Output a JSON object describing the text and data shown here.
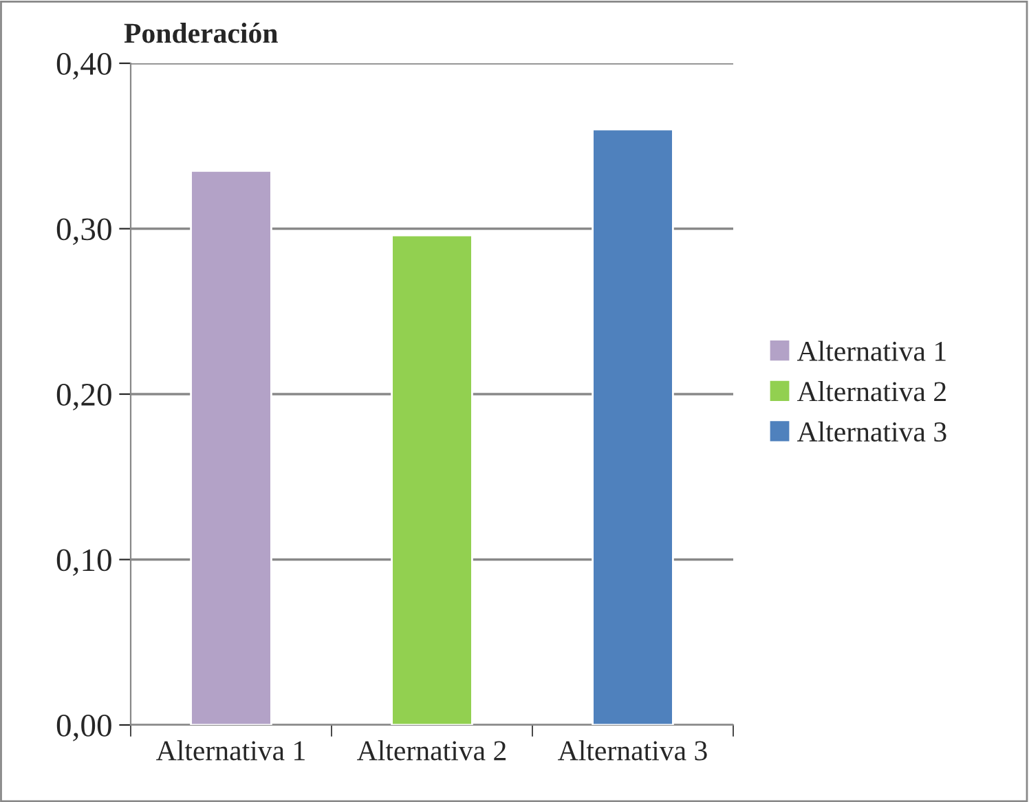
{
  "chart_data": {
    "type": "bar",
    "title": "Ponderación",
    "categories": [
      "Alternativa 1",
      "Alternativa 2",
      "Alternativa 3"
    ],
    "series": [
      {
        "name": "Alternativa 1",
        "color": "#b3a2c7",
        "values": [
          0.335,
          null,
          null
        ]
      },
      {
        "name": "Alternativa 2",
        "color": "#92d050",
        "values": [
          null,
          0.296,
          null
        ]
      },
      {
        "name": "Alternativa 3",
        "color": "#4f81bd",
        "values": [
          null,
          null,
          0.36
        ]
      }
    ],
    "ylim": [
      0,
      0.4
    ],
    "yticks": [
      {
        "value": 0,
        "label": "0,00"
      },
      {
        "value": 0.1,
        "label": "0,10"
      },
      {
        "value": 0.2,
        "label": "0,20"
      },
      {
        "value": 0.3,
        "label": "0,30"
      },
      {
        "value": 0.4,
        "label": "0,40"
      }
    ],
    "grid": "y",
    "legend": "right"
  }
}
